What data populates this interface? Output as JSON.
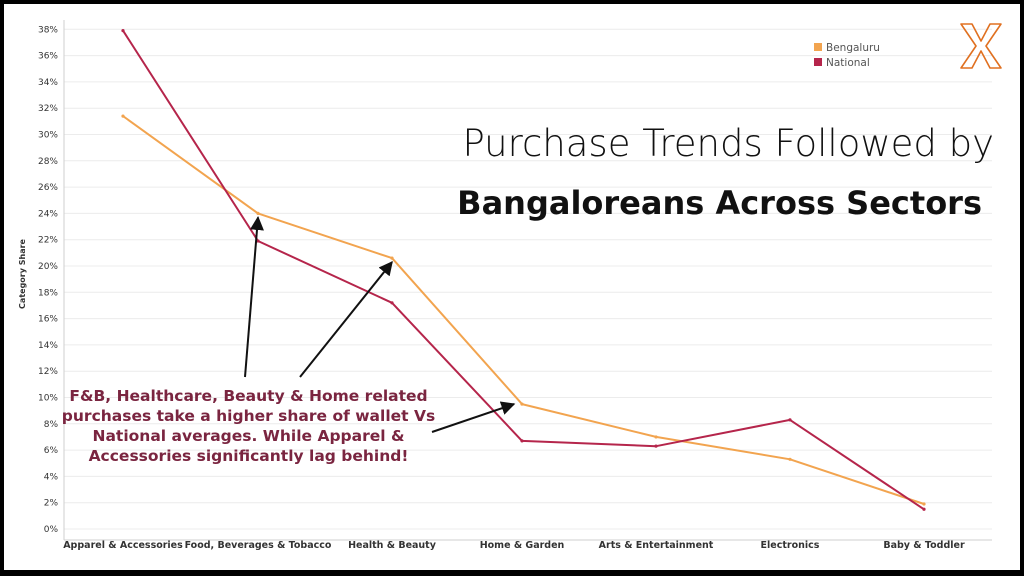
{
  "title_line1": "Purchase Trends Followed by",
  "title_line2": "Bangaloreans Across Sectors",
  "annotation": "F&B, Healthcare, Beauty & Home related purchases take a higher share of wallet Vs National averages. While Apparel & Accessories significantly lag behind!",
  "logo": {
    "icon": "x-logo-icon",
    "color": "#e07020"
  },
  "chart_data": {
    "type": "line",
    "ylabel": "Category Share",
    "xlabel": "",
    "ylim": [
      0,
      38
    ],
    "yticks": [
      "0%",
      "2%",
      "4%",
      "6%",
      "8%",
      "10%",
      "12%",
      "14%",
      "16%",
      "18%",
      "20%",
      "22%",
      "24%",
      "26%",
      "28%",
      "30%",
      "32%",
      "34%",
      "36%",
      "38%"
    ],
    "categories": [
      "Apparel & Accessories",
      "Food, Beverages & Tobacco",
      "Health & Beauty",
      "Home & Garden",
      "Arts & Entertainment",
      "Electronics",
      "Baby & Toddler"
    ],
    "series": [
      {
        "name": "Bengaluru",
        "color": "#f2a44f",
        "values": [
          31.4,
          24.0,
          20.6,
          9.5,
          7.0,
          5.3,
          1.9
        ]
      },
      {
        "name": "National",
        "color": "#b5254b",
        "values": [
          37.9,
          21.9,
          17.2,
          6.7,
          6.3,
          8.3,
          1.5
        ]
      }
    ],
    "legend_position": "top-right",
    "grid": true
  }
}
